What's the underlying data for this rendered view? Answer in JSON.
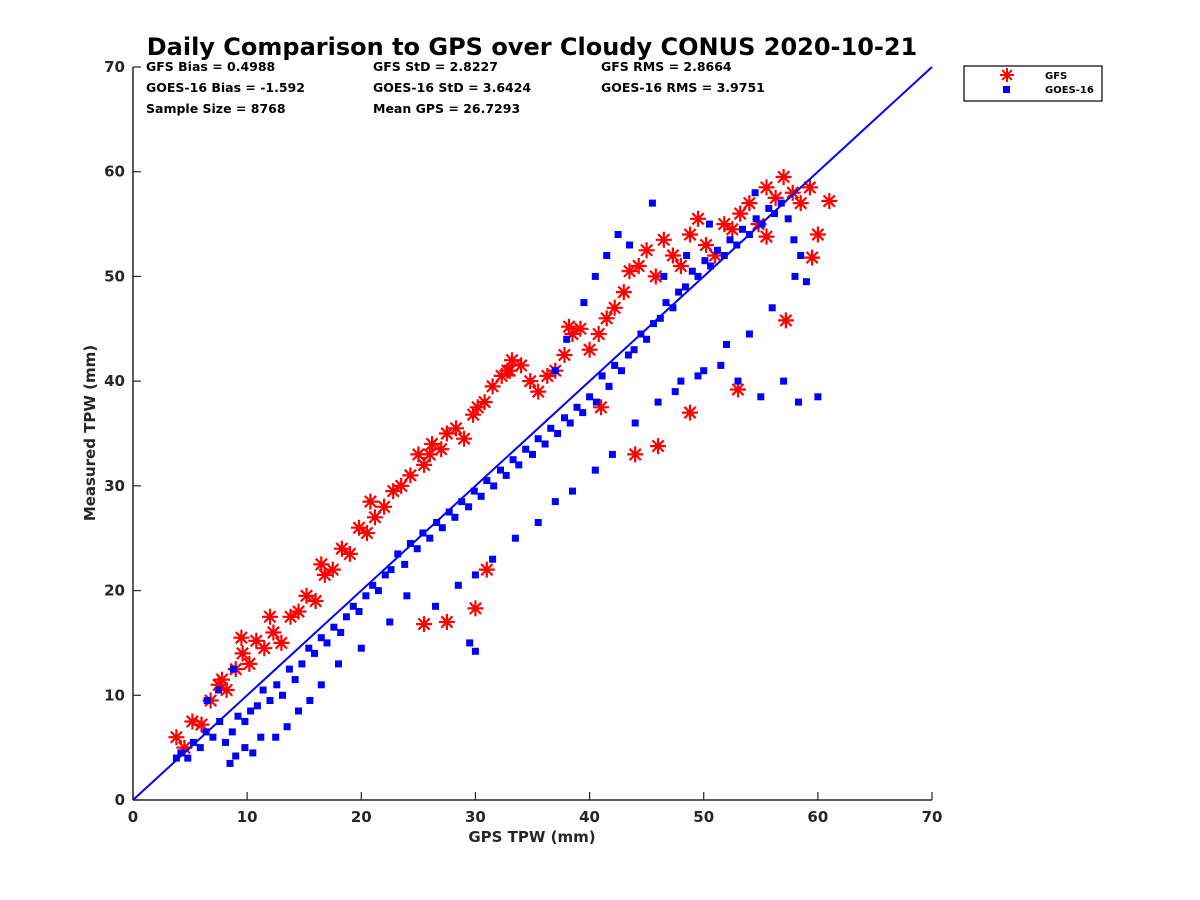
{
  "chart_data": {
    "type": "scatter",
    "title": "Daily Comparison to GPS over Cloudy CONUS 2020-10-21",
    "xlabel": "GPS TPW (mm)",
    "ylabel": "Measured TPW (mm)",
    "xlim": [
      0,
      70
    ],
    "ylim": [
      0,
      70
    ],
    "xticks": [
      "0",
      "10",
      "20",
      "30",
      "40",
      "50",
      "60",
      "70"
    ],
    "yticks": [
      "0",
      "10",
      "20",
      "30",
      "40",
      "50",
      "60",
      "70"
    ],
    "grid": false,
    "legend_position": "outside-top-right",
    "reference_line": {
      "x": [
        0,
        70
      ],
      "y": [
        0,
        70
      ],
      "color": "#0000ff"
    },
    "stats": [
      {
        "label": "GFS Bias = 0.4988"
      },
      {
        "label": "GFS StD = 2.8227"
      },
      {
        "label": "GFS RMS = 2.8664"
      },
      {
        "label": "GOES-16 Bias = -1.592"
      },
      {
        "label": "GOES-16 StD = 3.6424"
      },
      {
        "label": "GOES-16 RMS = 3.9751"
      },
      {
        "label": "Sample Size = 8768"
      },
      {
        "label": "Mean GPS = 26.7293"
      }
    ],
    "series": [
      {
        "name": "GFS",
        "marker": "asterisk",
        "color": "#ff0000",
        "x": [
          3.8,
          4.5,
          5.2,
          6.0,
          6.8,
          7.5,
          8.2,
          9.0,
          9.6,
          10.2,
          10.8,
          11.5,
          12.3,
          13.0,
          13.8,
          14.5,
          15.2,
          16.0,
          16.8,
          17.5,
          18.3,
          19.0,
          19.8,
          20.5,
          21.2,
          22.0,
          22.8,
          23.5,
          24.3,
          25.0,
          25.5,
          26.2,
          27.0,
          27.5,
          28.3,
          29.0,
          29.8,
          30.2,
          30.8,
          31.5,
          32.3,
          32.8,
          33.2,
          34.0,
          34.8,
          35.5,
          36.3,
          37.0,
          37.8,
          38.5,
          39.2,
          40.0,
          40.8,
          41.5,
          42.2,
          43.0,
          43.5,
          44.3,
          45.0,
          45.8,
          46.5,
          47.3,
          48.0,
          48.8,
          49.5,
          50.2,
          51.0,
          51.8,
          52.5,
          53.2,
          54.0,
          54.8,
          55.5,
          56.3,
          57.0,
          57.8,
          58.5,
          59.3,
          60.0,
          61.0,
          25.5,
          27.5,
          30.0,
          31.0,
          38.2,
          44.0,
          46.0,
          48.8,
          53.0,
          55.5,
          57.2,
          59.5,
          9.5,
          7.8,
          12.0,
          16.5,
          20.8,
          26.0,
          33.0,
          41.0
        ],
        "y": [
          6.0,
          5.0,
          7.5,
          7.2,
          9.5,
          11.0,
          10.5,
          12.5,
          14.0,
          13.0,
          15.2,
          14.5,
          16.0,
          15.0,
          17.5,
          18.0,
          19.5,
          19.0,
          21.5,
          22.0,
          24.0,
          23.5,
          26.0,
          25.5,
          27.0,
          28.0,
          29.5,
          30.0,
          31.0,
          33.0,
          32.0,
          34.0,
          33.5,
          35.0,
          35.5,
          34.5,
          36.8,
          37.5,
          38.0,
          39.5,
          40.5,
          41.0,
          42.0,
          41.5,
          40.0,
          39.0,
          40.5,
          41.0,
          42.5,
          44.5,
          45.0,
          43.0,
          44.5,
          46.0,
          47.0,
          48.5,
          50.5,
          51.0,
          52.5,
          50.0,
          53.5,
          52.0,
          51.0,
          54.0,
          55.5,
          53.0,
          52.0,
          55.0,
          54.5,
          56.0,
          57.0,
          55.0,
          58.5,
          57.5,
          59.5,
          58.0,
          57.0,
          58.5,
          54.0,
          57.2,
          16.8,
          17.0,
          18.3,
          22.0,
          45.2,
          33.0,
          33.8,
          37.0,
          39.2,
          53.8,
          45.8,
          51.8,
          15.5,
          11.5,
          17.5,
          22.5,
          28.5,
          33.0,
          41.0,
          37.5
        ]
      },
      {
        "name": "GOES-16",
        "marker": "square",
        "color": "#0000ff",
        "x": [
          3.8,
          4.2,
          4.8,
          5.3,
          5.9,
          6.4,
          7.0,
          7.6,
          8.1,
          8.7,
          9.2,
          9.8,
          10.3,
          10.9,
          11.4,
          12.0,
          12.6,
          13.1,
          13.7,
          14.2,
          14.8,
          15.4,
          15.9,
          16.5,
          17.0,
          17.6,
          18.2,
          18.7,
          19.3,
          19.8,
          20.4,
          21.0,
          21.5,
          22.1,
          22.6,
          23.2,
          23.8,
          24.3,
          24.9,
          25.4,
          26.0,
          26.6,
          27.1,
          27.7,
          28.2,
          28.8,
          29.4,
          29.9,
          30.5,
          31.0,
          31.6,
          32.2,
          32.7,
          33.3,
          33.8,
          34.4,
          35.0,
          35.5,
          36.1,
          36.6,
          37.2,
          37.8,
          38.3,
          38.9,
          39.4,
          40.0,
          40.6,
          41.1,
          41.7,
          42.2,
          42.8,
          43.4,
          43.9,
          44.5,
          45.0,
          45.6,
          46.2,
          46.7,
          47.3,
          47.8,
          48.4,
          49.0,
          49.5,
          50.1,
          50.6,
          51.2,
          51.8,
          52.3,
          52.9,
          53.4,
          54.0,
          54.6,
          55.1,
          55.7,
          56.2,
          56.8,
          57.4,
          57.9,
          58.5,
          59.0,
          60.0,
          8.5,
          9.0,
          9.8,
          10.5,
          11.2,
          12.5,
          13.5,
          14.5,
          6.5,
          7.5,
          8.8,
          15.5,
          16.5,
          18.0,
          20.0,
          22.5,
          24.0,
          26.5,
          28.5,
          30.0,
          31.5,
          33.5,
          35.5,
          37.0,
          38.5,
          40.5,
          42.0,
          44.0,
          46.0,
          48.0,
          50.0,
          52.0,
          54.0,
          56.0,
          58.0,
          29.5,
          30.0,
          37.0,
          38.0,
          39.5,
          40.5,
          41.5,
          42.5,
          43.5,
          45.5,
          47.5,
          49.5,
          51.5,
          53.0,
          55.0,
          57.0,
          58.3,
          46.5,
          48.5,
          50.5,
          54.5
        ],
        "y": [
          4.0,
          4.5,
          4.0,
          5.5,
          5.0,
          6.5,
          6.0,
          7.5,
          5.5,
          6.5,
          8.0,
          7.5,
          8.5,
          9.0,
          10.5,
          9.5,
          11.0,
          10.0,
          12.5,
          11.5,
          13.0,
          14.5,
          14.0,
          15.5,
          15.0,
          16.5,
          16.0,
          17.5,
          18.5,
          18.0,
          19.5,
          20.5,
          20.0,
          21.5,
          22.0,
          23.5,
          22.5,
          24.5,
          24.0,
          25.5,
          25.0,
          26.5,
          26.0,
          27.5,
          27.0,
          28.5,
          28.0,
          29.5,
          29.0,
          30.5,
          30.0,
          31.5,
          31.0,
          32.5,
          32.0,
          33.5,
          33.0,
          34.5,
          34.0,
          35.5,
          35.0,
          36.5,
          36.0,
          37.5,
          37.0,
          38.5,
          38.0,
          40.5,
          39.5,
          41.5,
          41.0,
          42.5,
          43.0,
          44.5,
          44.0,
          45.5,
          46.0,
          47.5,
          47.0,
          48.5,
          49.0,
          50.5,
          50.0,
          51.5,
          51.0,
          52.5,
          52.0,
          53.5,
          53.0,
          54.5,
          54.0,
          55.5,
          55.0,
          56.5,
          56.0,
          57.0,
          55.5,
          53.5,
          52.0,
          49.5,
          38.5,
          3.5,
          4.2,
          5.0,
          4.5,
          6.0,
          6.0,
          7.0,
          8.5,
          9.5,
          10.5,
          12.5,
          9.5,
          11.0,
          13.0,
          14.5,
          17.0,
          19.5,
          18.5,
          20.5,
          21.5,
          23.0,
          25.0,
          26.5,
          28.5,
          29.5,
          31.5,
          33.0,
          36.0,
          38.0,
          40.0,
          41.0,
          43.5,
          44.5,
          47.0,
          50.0,
          15.0,
          14.2,
          41.0,
          44.0,
          47.5,
          50.0,
          52.0,
          54.0,
          53.0,
          57.0,
          39.0,
          40.5,
          41.5,
          40.0,
          38.5,
          40.0,
          38.0,
          50.0,
          52.0,
          55.0,
          58.0
        ]
      }
    ]
  }
}
